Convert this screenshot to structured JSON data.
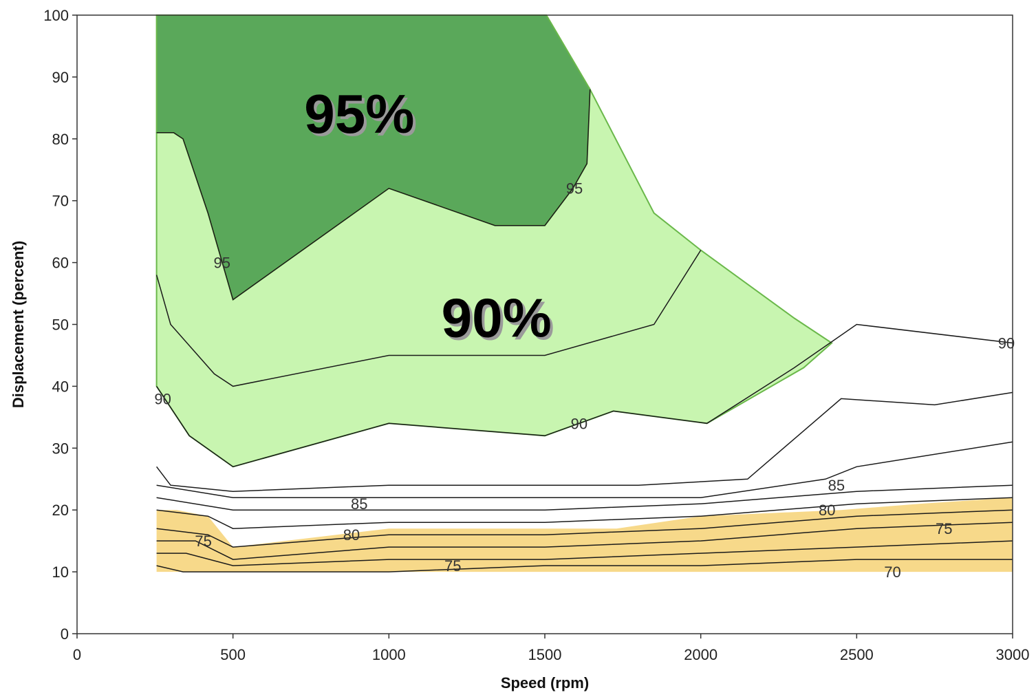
{
  "chart_data": {
    "type": "contour",
    "xlabel": "Speed (rpm)",
    "ylabel": "Displacement (percent)",
    "xlim": [
      0,
      3000
    ],
    "ylim": [
      0,
      100
    ],
    "x_ticks": [
      0,
      500,
      1000,
      1500,
      2000,
      2500,
      3000
    ],
    "y_ticks": [
      0,
      10,
      20,
      30,
      40,
      50,
      60,
      70,
      80,
      90,
      100
    ],
    "grid": false,
    "colors": {
      "region_95": "#5aa85a",
      "region_90": "#c8f5b0",
      "region_75": "#f7d98a",
      "outline": "#6ab84a",
      "contour": "#1a1a1a"
    },
    "regions": [
      {
        "name": "95%",
        "color": "#5aa85a",
        "points": [
          [
            255,
            100
          ],
          [
            1505,
            100
          ],
          [
            1645,
            88
          ],
          [
            1635,
            76
          ],
          [
            1590,
            72
          ],
          [
            1500,
            66
          ],
          [
            1340,
            66
          ],
          [
            1000,
            72
          ],
          [
            500,
            54
          ],
          [
            420,
            68
          ],
          [
            340,
            80
          ],
          [
            310,
            81
          ],
          [
            255,
            81
          ]
        ]
      },
      {
        "name": "90%",
        "color": "#c8f5b0",
        "points": [
          [
            255,
            81
          ],
          [
            310,
            81
          ],
          [
            340,
            80
          ],
          [
            420,
            68
          ],
          [
            500,
            54
          ],
          [
            1000,
            72
          ],
          [
            1340,
            66
          ],
          [
            1500,
            66
          ],
          [
            1590,
            72
          ],
          [
            1635,
            76
          ],
          [
            1645,
            88
          ],
          [
            1850,
            68
          ],
          [
            2000,
            62
          ],
          [
            2300,
            51
          ],
          [
            2420,
            47
          ],
          [
            2330,
            43
          ],
          [
            2020,
            34
          ],
          [
            1720,
            36
          ],
          [
            1500,
            32
          ],
          [
            1000,
            34
          ],
          [
            500,
            27
          ],
          [
            360,
            32
          ],
          [
            255,
            40
          ]
        ]
      },
      {
        "name": "75%",
        "color": "#f7d98a",
        "points": [
          [
            255,
            10
          ],
          [
            3000,
            10
          ],
          [
            3000,
            22
          ],
          [
            2700,
            21
          ],
          [
            2450,
            20
          ],
          [
            2000,
            19
          ],
          [
            1730,
            17
          ],
          [
            1000,
            17
          ],
          [
            500,
            14
          ],
          [
            420,
            19
          ],
          [
            320,
            20
          ],
          [
            255,
            20
          ]
        ]
      }
    ],
    "contours": [
      {
        "level": 95,
        "points": [
          [
            255,
            81
          ],
          [
            310,
            81
          ],
          [
            340,
            80
          ],
          [
            420,
            68
          ],
          [
            500,
            54
          ],
          [
            1000,
            72
          ],
          [
            1340,
            66
          ],
          [
            1500,
            66
          ],
          [
            1590,
            72
          ],
          [
            1635,
            76
          ],
          [
            1645,
            88
          ]
        ]
      },
      {
        "level": 90,
        "points": [
          [
            255,
            58
          ],
          [
            300,
            50
          ],
          [
            440,
            42
          ],
          [
            500,
            40
          ],
          [
            1000,
            45
          ],
          [
            1500,
            45
          ],
          [
            1850,
            50
          ],
          [
            2000,
            62
          ]
        ]
      },
      {
        "level": 90,
        "points": [
          [
            255,
            40
          ],
          [
            360,
            32
          ],
          [
            500,
            27
          ],
          [
            1000,
            34
          ],
          [
            1500,
            32
          ],
          [
            1720,
            36
          ],
          [
            2020,
            34
          ],
          [
            2300,
            43
          ],
          [
            2500,
            50
          ],
          [
            3000,
            47
          ]
        ]
      },
      {
        "level": 85,
        "points": [
          [
            255,
            27
          ],
          [
            300,
            24
          ],
          [
            500,
            23
          ],
          [
            1000,
            24
          ],
          [
            1500,
            24
          ],
          [
            1800,
            24
          ],
          [
            2150,
            25
          ],
          [
            2450,
            38
          ],
          [
            2750,
            37
          ],
          [
            3000,
            39
          ]
        ]
      },
      {
        "level": 85,
        "points": [
          [
            255,
            24
          ],
          [
            500,
            22
          ],
          [
            1000,
            22
          ],
          [
            1500,
            22
          ],
          [
            2000,
            22
          ],
          [
            2400,
            25
          ],
          [
            2500,
            27
          ],
          [
            3000,
            31
          ]
        ]
      },
      {
        "level": 80,
        "points": [
          [
            255,
            22
          ],
          [
            500,
            20
          ],
          [
            1000,
            20
          ],
          [
            1500,
            20
          ],
          [
            2000,
            21
          ],
          [
            2500,
            23
          ],
          [
            3000,
            24
          ]
        ]
      },
      {
        "level": 80,
        "points": [
          [
            255,
            20
          ],
          [
            420,
            19
          ],
          [
            500,
            17
          ],
          [
            1000,
            18
          ],
          [
            1500,
            18
          ],
          [
            2000,
            19
          ],
          [
            2500,
            21
          ],
          [
            3000,
            22
          ]
        ]
      },
      {
        "level": 75,
        "points": [
          [
            255,
            17
          ],
          [
            420,
            16
          ],
          [
            500,
            14
          ],
          [
            1000,
            16
          ],
          [
            1500,
            16
          ],
          [
            2000,
            17
          ],
          [
            2500,
            19
          ],
          [
            3000,
            20
          ]
        ]
      },
      {
        "level": 75,
        "points": [
          [
            255,
            15
          ],
          [
            380,
            15
          ],
          [
            500,
            12
          ],
          [
            1000,
            14
          ],
          [
            1500,
            14
          ],
          [
            2000,
            15
          ],
          [
            2500,
            17
          ],
          [
            3000,
            18
          ]
        ]
      },
      {
        "level": 70,
        "points": [
          [
            255,
            13
          ],
          [
            350,
            13
          ],
          [
            500,
            11
          ],
          [
            1000,
            12
          ],
          [
            1500,
            12
          ],
          [
            2000,
            13
          ],
          [
            2500,
            14
          ],
          [
            3000,
            15
          ]
        ]
      },
      {
        "level": 70,
        "points": [
          [
            255,
            11
          ],
          [
            340,
            10
          ],
          [
            1000,
            10
          ],
          [
            1500,
            11
          ],
          [
            2000,
            11
          ],
          [
            2500,
            12
          ],
          [
            3000,
            12
          ]
        ]
      }
    ],
    "contour_labels": [
      {
        "text": "95",
        "x": 465,
        "y": 60
      },
      {
        "text": "95",
        "x": 1595,
        "y": 72
      },
      {
        "text": "90",
        "x": 275,
        "y": 38
      },
      {
        "text": "90",
        "x": 1610,
        "y": 34
      },
      {
        "text": "85",
        "x": 905,
        "y": 21
      },
      {
        "text": "85",
        "x": 2435,
        "y": 24
      },
      {
        "text": "80",
        "x": 880,
        "y": 16
      },
      {
        "text": "80",
        "x": 2405,
        "y": 20
      },
      {
        "text": "75",
        "x": 405,
        "y": 15
      },
      {
        "text": "75",
        "x": 1205,
        "y": 11
      },
      {
        "text": "75",
        "x": 2780,
        "y": 17
      },
      {
        "text": "70",
        "x": 2615,
        "y": 10
      },
      {
        "text": "90",
        "x": 2980,
        "y": 47
      }
    ],
    "annotations": [
      {
        "text": "95%",
        "x": 905,
        "y": 81
      },
      {
        "text": "90%",
        "x": 1345,
        "y": 48
      }
    ]
  }
}
